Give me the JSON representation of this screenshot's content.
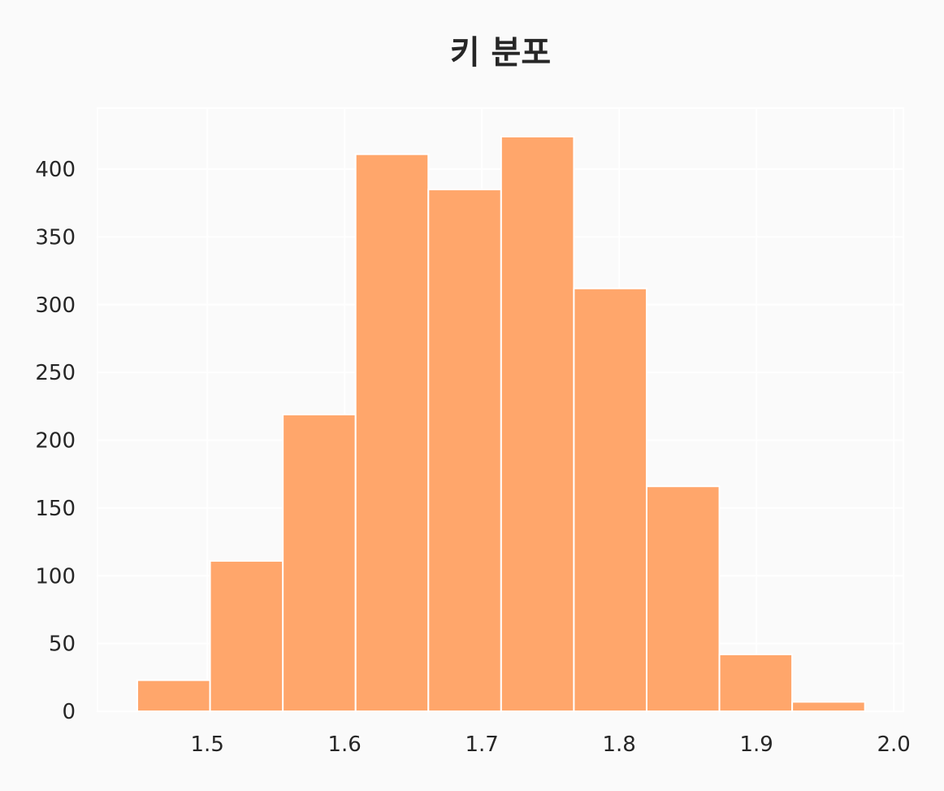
{
  "chart_data": {
    "type": "bar",
    "title": "키 분포",
    "xlabel": "",
    "ylabel": "",
    "bin_edges": [
      1.449,
      1.502,
      1.555,
      1.608,
      1.661,
      1.714,
      1.767,
      1.82,
      1.873,
      1.926,
      1.979
    ],
    "values": [
      23,
      111,
      219,
      411,
      385,
      424,
      312,
      166,
      42,
      7
    ],
    "xlim": [
      1.42,
      2.007
    ],
    "ylim": [
      0,
      445
    ],
    "xticks": [
      1.5,
      1.6,
      1.7,
      1.8,
      1.9,
      2.0
    ],
    "xtick_labels": [
      "1.5",
      "1.6",
      "1.7",
      "1.8",
      "1.9",
      "2.0"
    ],
    "yticks": [
      0,
      50,
      100,
      150,
      200,
      250,
      300,
      350,
      400
    ],
    "ytick_labels": [
      "0",
      "50",
      "100",
      "150",
      "200",
      "250",
      "300",
      "350",
      "400"
    ],
    "bar_color": "#ffa66b",
    "grid": true
  }
}
